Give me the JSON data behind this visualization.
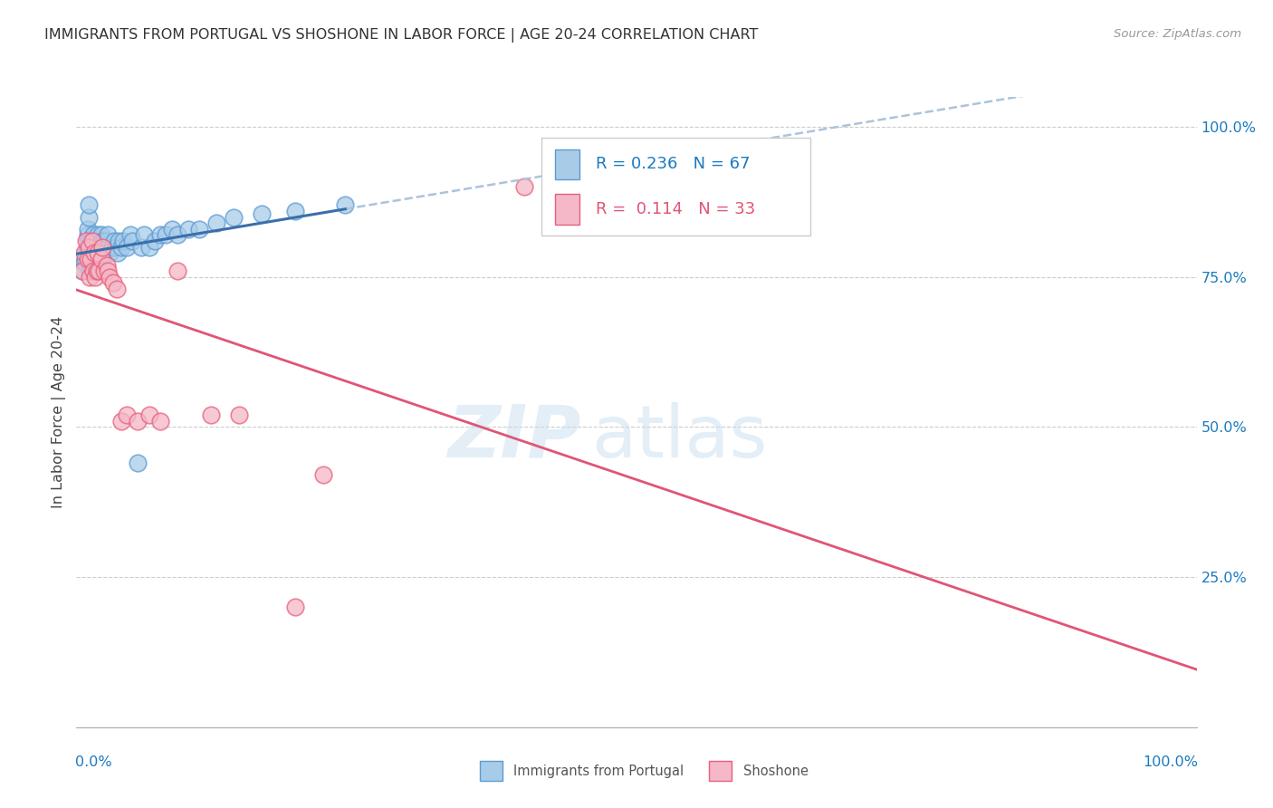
{
  "title": "IMMIGRANTS FROM PORTUGAL VS SHOSHONE IN LABOR FORCE | AGE 20-24 CORRELATION CHART",
  "source": "Source: ZipAtlas.com",
  "ylabel": "In Labor Force | Age 20-24",
  "xlim": [
    0.0,
    1.0
  ],
  "ylim": [
    0.0,
    1.05
  ],
  "legend_r1": "R = 0.236",
  "legend_n1": "N = 67",
  "legend_r2": "R =  0.114",
  "legend_n2": "N = 33",
  "color_blue": "#a8cce8",
  "color_pink": "#f4b8c8",
  "color_blue_edge": "#5b9bd5",
  "color_pink_edge": "#e8607a",
  "color_blue_line": "#3a6faa",
  "color_pink_line": "#e05575",
  "color_dashed": "#aac4dd",
  "watermark_zip": "ZIP",
  "watermark_atlas": "atlas",
  "portugal_x": [
    0.005,
    0.007,
    0.008,
    0.009,
    0.01,
    0.01,
    0.01,
    0.01,
    0.011,
    0.011,
    0.012,
    0.012,
    0.012,
    0.013,
    0.013,
    0.013,
    0.014,
    0.014,
    0.015,
    0.015,
    0.015,
    0.016,
    0.016,
    0.017,
    0.017,
    0.018,
    0.018,
    0.019,
    0.019,
    0.02,
    0.021,
    0.022,
    0.022,
    0.023,
    0.024,
    0.025,
    0.025,
    0.026,
    0.027,
    0.028,
    0.03,
    0.032,
    0.034,
    0.035,
    0.037,
    0.038,
    0.04,
    0.042,
    0.045,
    0.048,
    0.05,
    0.055,
    0.058,
    0.06,
    0.065,
    0.07,
    0.075,
    0.08,
    0.085,
    0.09,
    0.1,
    0.11,
    0.125,
    0.14,
    0.165,
    0.195,
    0.24
  ],
  "portugal_y": [
    0.76,
    0.775,
    0.78,
    0.79,
    0.8,
    0.81,
    0.82,
    0.83,
    0.85,
    0.87,
    0.76,
    0.78,
    0.8,
    0.77,
    0.79,
    0.81,
    0.76,
    0.79,
    0.78,
    0.8,
    0.82,
    0.77,
    0.8,
    0.78,
    0.8,
    0.79,
    0.81,
    0.8,
    0.82,
    0.8,
    0.79,
    0.8,
    0.82,
    0.81,
    0.8,
    0.79,
    0.81,
    0.8,
    0.81,
    0.82,
    0.79,
    0.8,
    0.81,
    0.8,
    0.79,
    0.81,
    0.8,
    0.81,
    0.8,
    0.82,
    0.81,
    0.44,
    0.8,
    0.82,
    0.8,
    0.81,
    0.82,
    0.82,
    0.83,
    0.82,
    0.83,
    0.83,
    0.84,
    0.85,
    0.855,
    0.86,
    0.87
  ],
  "shoshone_x": [
    0.005,
    0.007,
    0.009,
    0.01,
    0.011,
    0.012,
    0.013,
    0.014,
    0.015,
    0.016,
    0.017,
    0.018,
    0.019,
    0.02,
    0.022,
    0.023,
    0.025,
    0.027,
    0.028,
    0.03,
    0.033,
    0.036,
    0.04,
    0.045,
    0.055,
    0.065,
    0.075,
    0.09,
    0.12,
    0.145,
    0.195,
    0.22,
    0.4
  ],
  "shoshone_y": [
    0.76,
    0.79,
    0.81,
    0.78,
    0.8,
    0.75,
    0.78,
    0.81,
    0.76,
    0.79,
    0.75,
    0.76,
    0.79,
    0.76,
    0.78,
    0.8,
    0.76,
    0.77,
    0.76,
    0.75,
    0.74,
    0.73,
    0.51,
    0.52,
    0.51,
    0.52,
    0.51,
    0.76,
    0.52,
    0.52,
    0.2,
    0.42,
    0.9
  ]
}
